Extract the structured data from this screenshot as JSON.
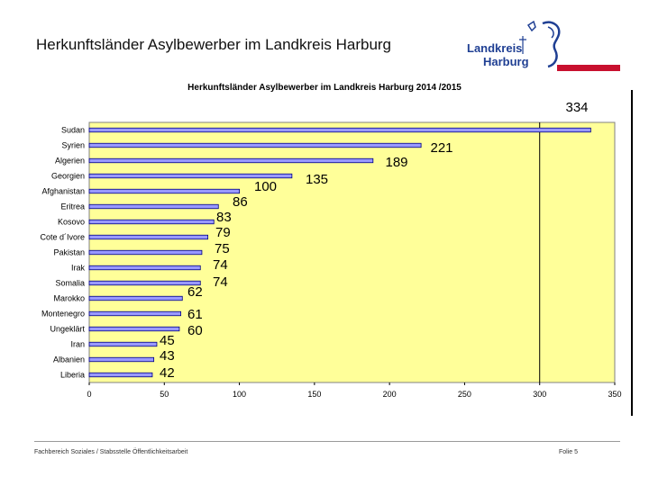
{
  "slide": {
    "title": "Herkunftsländer Asylbewerber im Landkreis Harburg",
    "logo_line1": "Landkreis",
    "logo_line2": "Harburg",
    "footer_left": "Fachbereich Soziales / Stabsstelle Öffentlichkeitsarbeit",
    "footer_right": "Folie 5"
  },
  "colors": {
    "plot_background": "#ffff99",
    "bar_fill": "#9999ff",
    "bar_stroke": "#000080",
    "logo_blue": "#1f3f93",
    "logo_red": "#c8102e"
  },
  "chart_data": {
    "type": "bar",
    "orientation": "horizontal",
    "title": "Herkunftsländer Asylbewerber im Landkreis Harburg 2014 /2015",
    "categories": [
      "Sudan",
      "Syrien",
      "Algerien",
      "Georgien",
      "Afghanistan",
      "Eritrea",
      "Kosovo",
      "Cote d´Ivore",
      "Pakistan",
      "Irak",
      "Somalia",
      "Marokko",
      "Montenegro",
      "Ungeklärt",
      "Iran",
      "Albanien",
      "Liberia"
    ],
    "values": [
      334,
      221,
      189,
      135,
      100,
      86,
      83,
      79,
      75,
      74,
      74,
      62,
      61,
      60,
      45,
      43,
      42
    ],
    "xlim": [
      0,
      350
    ],
    "xticks": [
      0,
      50,
      100,
      150,
      200,
      250,
      300,
      350
    ],
    "gridlines_x": [
      300
    ],
    "legend": false
  }
}
